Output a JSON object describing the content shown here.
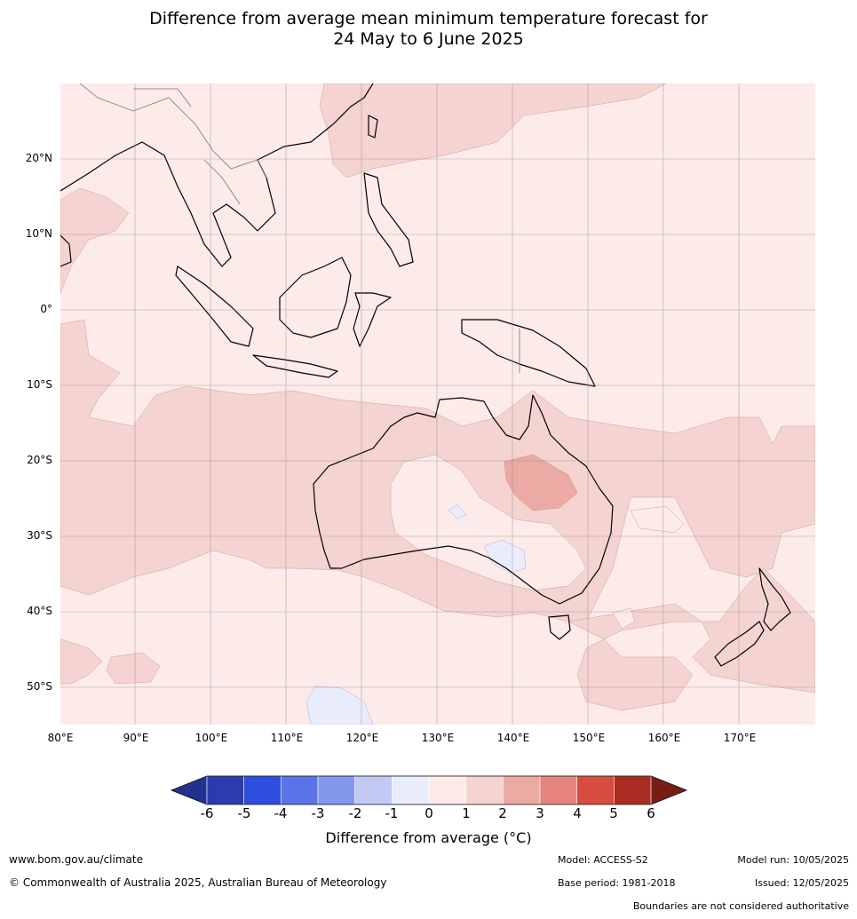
{
  "title": {
    "line1": "Difference from average mean minimum temperature forecast for",
    "line2": "24 May to 6 June 2025"
  },
  "map": {
    "lat_labels": [
      "20°N",
      "10°N",
      "0°",
      "10°S",
      "20°S",
      "30°S",
      "40°S",
      "50°S"
    ],
    "lon_labels": [
      "80°E",
      "90°E",
      "100°E",
      "110°E",
      "120°E",
      "130°E",
      "140°E",
      "150°E",
      "160°E",
      "170°E"
    ]
  },
  "colorbar": {
    "ticks": [
      "-6",
      "-5",
      "-4",
      "-3",
      "-2",
      "-1",
      "0",
      "1",
      "2",
      "3",
      "4",
      "5",
      "6"
    ],
    "colors": [
      "#22308f",
      "#2c3bb0",
      "#2f4ee0",
      "#5a73e6",
      "#8397ec",
      "#c1c9f4",
      "#e9ecfb",
      "#fcebe9",
      "#f5d3d0",
      "#ecaaa4",
      "#e5857e",
      "#d94c40",
      "#aa2b22",
      "#781c16"
    ],
    "label": "Difference from average (°C)"
  },
  "footer": {
    "website": "www.bom.gov.au/climate",
    "copyright": "© Commonwealth of Australia 2025, Australian Bureau of Meteorology",
    "model": "Model: ACCESS-S2",
    "base_period": "Base period: 1981-2018",
    "model_run": "Model run: 10/05/2025",
    "issued": "Issued: 12/05/2025",
    "disclaimer": "Boundaries are not considered authoritative"
  }
}
